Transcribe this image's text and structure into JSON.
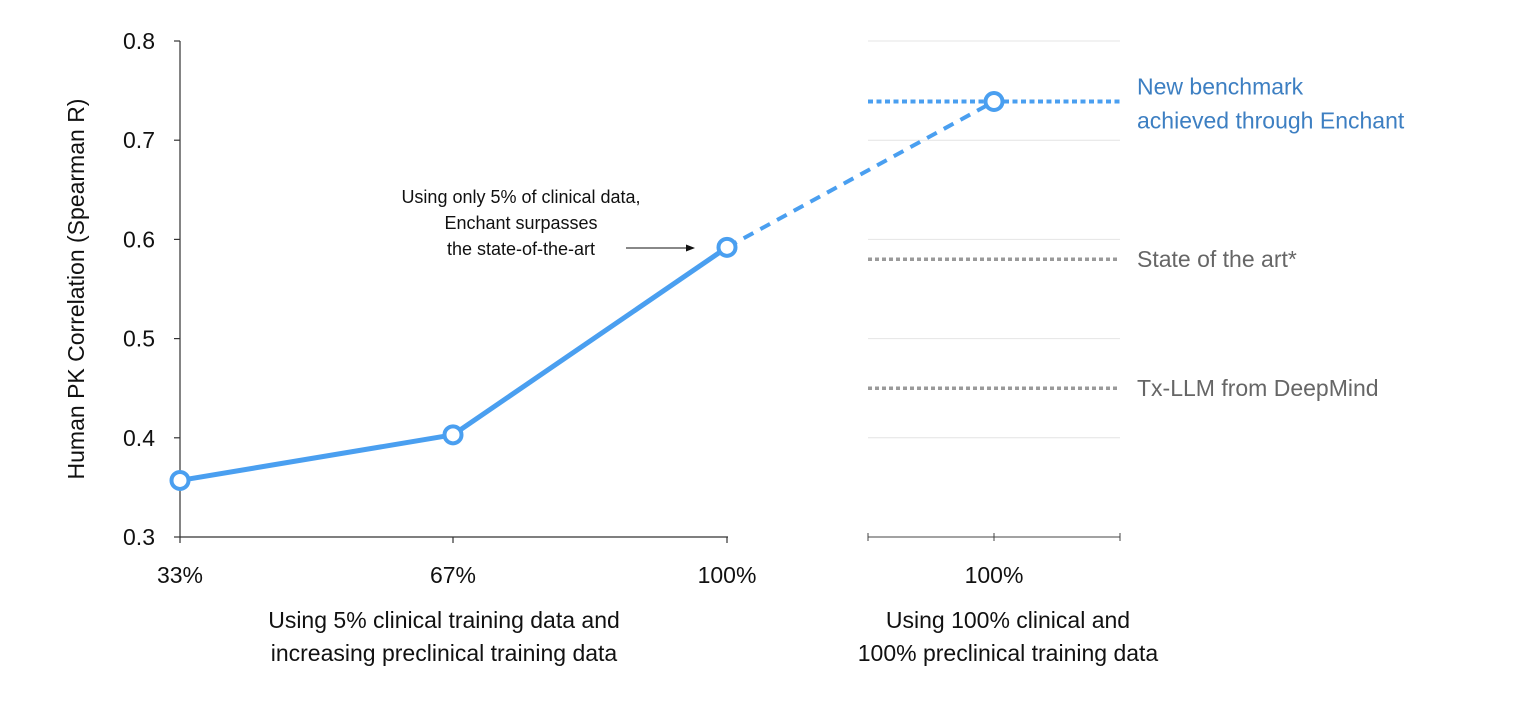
{
  "chart_data": {
    "type": "line",
    "ylabel": "Human PK Correlation (Spearman R)",
    "ylim": [
      0.3,
      0.8
    ],
    "yticks": [
      "0.3",
      "0.4",
      "0.5",
      "0.6",
      "0.7",
      "0.8"
    ],
    "groups": [
      {
        "title_lines": [
          "Using 5% clinical training data and",
          "increasing preclinical training data"
        ],
        "categories": [
          "33%",
          "67%",
          "100%"
        ]
      },
      {
        "title_lines": [
          "Using 100% clinical and",
          "100% preclinical training data"
        ],
        "categories": [
          "100%"
        ]
      }
    ],
    "series": [
      {
        "name": "Enchant",
        "color": "#4a9ff0",
        "values": [
          0.357,
          0.403,
          0.592
        ],
        "extension_value": 0.739
      }
    ],
    "reference_lines": [
      {
        "label_lines": [
          "New benchmark",
          "achieved through Enchant"
        ],
        "value": 0.739,
        "color": "#4a9ff0",
        "label_color": "#3d7fc2"
      },
      {
        "label_lines": [
          "State of the art*"
        ],
        "value": 0.58,
        "color": "#9a9a9a",
        "label_color": "#666666"
      },
      {
        "label_lines": [
          "Tx-LLM from DeepMind"
        ],
        "value": 0.45,
        "color": "#9a9a9a",
        "label_color": "#666666"
      }
    ],
    "annotation": {
      "lines": [
        "Using only 5% of clinical data,",
        "Enchant surpasses",
        "the state-of-the-art"
      ]
    }
  }
}
